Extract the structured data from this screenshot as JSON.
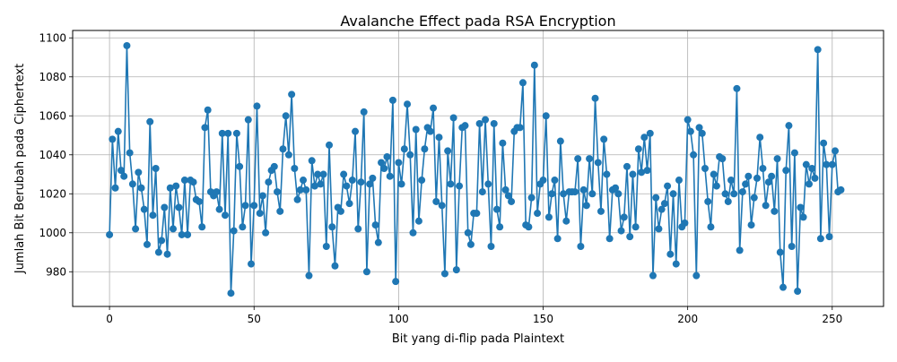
{
  "chart_data": {
    "type": "line",
    "title": "Avalanche Effect pada RSA Encryption",
    "xlabel": "Bit yang di-flip pada Plaintext",
    "ylabel": "Jumlah Bit Berubah pada Ciphertext",
    "xlim": [
      -12.75,
      267.75
    ],
    "ylim": [
      962.2,
      1103.8
    ],
    "xticks": [
      0,
      50,
      100,
      150,
      200,
      250
    ],
    "yticks": [
      980,
      1000,
      1020,
      1040,
      1060,
      1080,
      1100
    ],
    "grid": true,
    "color": "#1f77b4",
    "marker": "circle",
    "series": [
      {
        "x_start": 0,
        "x_step": 1,
        "values": [
          999,
          1048,
          1023,
          1052,
          1032,
          1029,
          1096,
          1041,
          1025,
          1002,
          1031,
          1023,
          1012,
          994,
          1057,
          1009,
          1033,
          990,
          996,
          1013,
          989,
          1023,
          1002,
          1024,
          1013,
          999,
          1027,
          999,
          1027,
          1026,
          1017,
          1016,
          1003,
          1054,
          1063,
          1021,
          1019,
          1021,
          1012,
          1051,
          1009,
          1051,
          969,
          1001,
          1051,
          1034,
          1003,
          1014,
          1058,
          984,
          1014,
          1065,
          1010,
          1019,
          1000,
          1026,
          1032,
          1034,
          1021,
          1011,
          1043,
          1060,
          1040,
          1071,
          1033,
          1017,
          1022,
          1027,
          1022,
          978,
          1037,
          1024,
          1030,
          1025,
          1030,
          993,
          1045,
          1003,
          983,
          1013,
          1011,
          1030,
          1024,
          1015,
          1027,
          1052,
          1002,
          1026,
          1062,
          980,
          1025,
          1028,
          1004,
          995,
          1036,
          1033,
          1039,
          1029,
          1068,
          975,
          1036,
          1025,
          1043,
          1066,
          1040,
          1000,
          1053,
          1006,
          1027,
          1043,
          1054,
          1052,
          1064,
          1016,
          1049,
          1014,
          979,
          1042,
          1025,
          1059,
          981,
          1024,
          1054,
          1055,
          1000,
          994,
          1010,
          1010,
          1056,
          1021,
          1058,
          1025,
          993,
          1056,
          1012,
          1003,
          1046,
          1022,
          1019,
          1016,
          1052,
          1054,
          1054,
          1077,
          1004,
          1003,
          1018,
          1086,
          1010,
          1025,
          1027,
          1060,
          1008,
          1020,
          1027,
          997,
          1047,
          1020,
          1006,
          1021,
          1021,
          1021,
          1038,
          993,
          1022,
          1014,
          1038,
          1020,
          1069,
          1036,
          1011,
          1048,
          1030,
          997,
          1022,
          1023,
          1020,
          1001,
          1008,
          1034,
          998,
          1030,
          1003,
          1043,
          1031,
          1049,
          1032,
          1051,
          978,
          1018,
          1002,
          1012,
          1015,
          1024,
          989,
          1020,
          984,
          1027,
          1003,
          1005,
          1058,
          1052,
          1040,
          978,
          1054,
          1051,
          1033,
          1016,
          1003,
          1030,
          1024,
          1039,
          1038,
          1020,
          1016,
          1027,
          1020,
          1074,
          991,
          1021,
          1025,
          1029,
          1004,
          1018,
          1028,
          1049,
          1033,
          1014,
          1026,
          1029,
          1011,
          1038,
          990,
          972,
          1032,
          1055,
          993,
          1041,
          970,
          1013,
          1008,
          1035,
          1025,
          1033,
          1028,
          1094,
          997,
          1046,
          1035,
          998,
          1035,
          1042,
          1021,
          1022
        ]
      }
    ]
  }
}
